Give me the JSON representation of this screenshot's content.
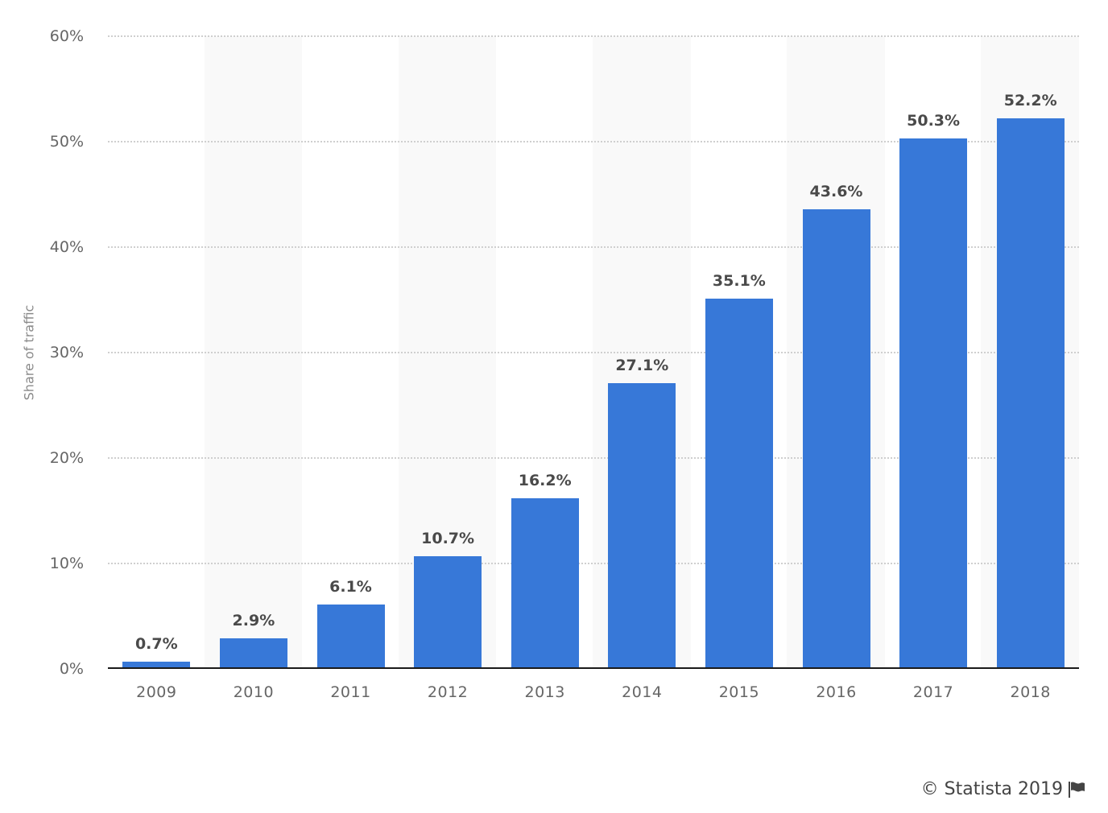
{
  "chart_data": {
    "type": "bar",
    "title": "",
    "xlabel": "",
    "ylabel": "Share of traffic",
    "categories": [
      "2009",
      "2010",
      "2011",
      "2012",
      "2013",
      "2014",
      "2015",
      "2016",
      "2017",
      "2018"
    ],
    "values": [
      0.7,
      2.9,
      6.1,
      10.7,
      16.2,
      27.1,
      35.1,
      43.6,
      50.3,
      52.2
    ],
    "value_labels": [
      "0.7%",
      "2.9%",
      "6.1%",
      "10.7%",
      "16.2%",
      "27.1%",
      "35.1%",
      "43.6%",
      "50.3%",
      "52.2%"
    ],
    "ylim": [
      0,
      60
    ],
    "yticks": [
      "0%",
      "10%",
      "20%",
      "30%",
      "40%",
      "50%",
      "60%"
    ],
    "grid": true,
    "legend": null,
    "bar_color": "#3778d8"
  },
  "footer": {
    "credit": "© Statista 2019",
    "flag_icon": "flag-icon"
  }
}
